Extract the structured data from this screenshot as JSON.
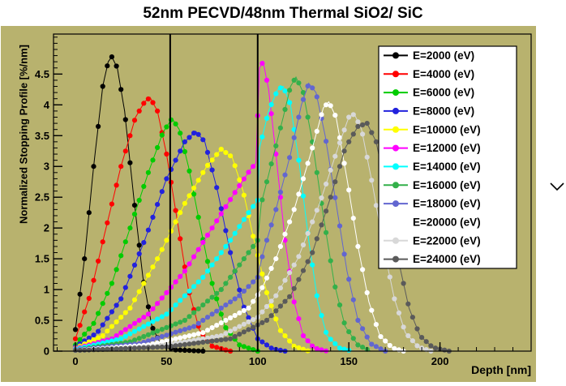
{
  "title": "52nm PECVD/48nm Thermal SiO2/ SiC",
  "colors": {
    "canvas_bg": "#b8b26e",
    "axis": "#000000",
    "legend_bg": "#ffffff"
  },
  "icons": {
    "side_chevron": "chevron-down-icon"
  },
  "chart_data": {
    "type": "line",
    "title": "52nm PECVD/48nm Thermal SiO2/ SiC",
    "xlabel": "Depth [nm]",
    "ylabel": "Normalized Stopping Profile [%/nm]",
    "xlim": [
      -12,
      250
    ],
    "ylim": [
      0,
      5.15
    ],
    "x_ticks": [
      0,
      50,
      100,
      150,
      200
    ],
    "y_ticks": [
      0,
      0.5,
      1,
      1.5,
      2,
      2.5,
      3,
      3.5,
      4,
      4.5
    ],
    "x_minor_step": 10,
    "y_minor_step": 0.1,
    "grid": false,
    "marker": "filled-circle",
    "legend_position": "top-right",
    "interface_lines_x": [
      52,
      100
    ],
    "series": [
      {
        "name": "E=2000 (eV)",
        "color": "#000000",
        "points": [
          [
            0,
            0.35
          ],
          [
            5,
            1.5
          ],
          [
            10,
            3.0
          ],
          [
            15,
            4.3
          ],
          [
            18,
            4.7
          ],
          [
            20,
            4.78
          ],
          [
            23,
            4.6
          ],
          [
            27,
            3.9
          ],
          [
            32,
            2.5
          ],
          [
            37,
            1.2
          ],
          [
            42,
            0.4
          ],
          [
            47,
            0.1
          ],
          [
            55,
            0.02
          ],
          [
            70,
            0
          ]
        ]
      },
      {
        "name": "E=4000 (eV)",
        "color": "#ff0000",
        "points": [
          [
            0,
            0.2
          ],
          [
            8,
            0.9
          ],
          [
            16,
            1.9
          ],
          [
            25,
            3.0
          ],
          [
            33,
            3.8
          ],
          [
            38,
            4.05
          ],
          [
            41,
            4.12
          ],
          [
            45,
            3.9
          ],
          [
            50,
            3.2
          ],
          [
            56,
            2.1
          ],
          [
            62,
            1.0
          ],
          [
            68,
            0.35
          ],
          [
            75,
            0.08
          ],
          [
            85,
            0
          ]
        ]
      },
      {
        "name": "E=6000 (eV)",
        "color": "#00cc00",
        "points": [
          [
            0,
            0.1
          ],
          [
            10,
            0.45
          ],
          [
            20,
            1.1
          ],
          [
            30,
            2.0
          ],
          [
            40,
            2.9
          ],
          [
            48,
            3.55
          ],
          [
            53,
            3.78
          ],
          [
            57,
            3.6
          ],
          [
            62,
            3.0
          ],
          [
            68,
            2.1
          ],
          [
            75,
            1.1
          ],
          [
            82,
            0.4
          ],
          [
            90,
            0.1
          ],
          [
            100,
            0
          ]
        ]
      },
      {
        "name": "E=8000 (eV)",
        "color": "#2222dd",
        "points": [
          [
            0,
            0.07
          ],
          [
            12,
            0.3
          ],
          [
            25,
            0.85
          ],
          [
            38,
            1.8
          ],
          [
            50,
            2.8
          ],
          [
            60,
            3.4
          ],
          [
            66,
            3.57
          ],
          [
            71,
            3.4
          ],
          [
            78,
            2.6
          ],
          [
            85,
            1.6
          ],
          [
            92,
            0.75
          ],
          [
            100,
            0.2
          ],
          [
            108,
            0.04
          ],
          [
            115,
            0
          ]
        ]
      },
      {
        "name": "E=10000 (eV)",
        "color": "#ffff00",
        "points": [
          [
            0,
            0.05
          ],
          [
            15,
            0.25
          ],
          [
            30,
            0.7
          ],
          [
            45,
            1.5
          ],
          [
            60,
            2.4
          ],
          [
            72,
            3.0
          ],
          [
            80,
            3.28
          ],
          [
            86,
            3.15
          ],
          [
            92,
            2.6
          ],
          [
            98,
            1.8
          ],
          [
            105,
            0.95
          ],
          [
            112,
            0.35
          ],
          [
            120,
            0.08
          ],
          [
            128,
            0
          ]
        ]
      },
      {
        "name": "E=12000 (eV)",
        "color": "#ff00ff",
        "points": [
          [
            0,
            0.04
          ],
          [
            20,
            0.2
          ],
          [
            40,
            0.6
          ],
          [
            60,
            1.3
          ],
          [
            75,
            2.0
          ],
          [
            88,
            2.6
          ],
          [
            96,
            2.95
          ],
          [
            99,
            3.05
          ],
          [
            101,
            4.6
          ],
          [
            103,
            4.7
          ],
          [
            106,
            4.25
          ],
          [
            110,
            3.2
          ],
          [
            115,
            1.8
          ],
          [
            120,
            0.8
          ],
          [
            125,
            0.25
          ],
          [
            131,
            0.05
          ],
          [
            138,
            0
          ]
        ]
      },
      {
        "name": "E=14000 (eV)",
        "color": "#00ffff",
        "points": [
          [
            0,
            0.03
          ],
          [
            25,
            0.2
          ],
          [
            50,
            0.6
          ],
          [
            70,
            1.2
          ],
          [
            85,
            1.8
          ],
          [
            95,
            2.25
          ],
          [
            100,
            2.45
          ],
          [
            101,
            3.3
          ],
          [
            106,
            3.9
          ],
          [
            111,
            4.25
          ],
          [
            114,
            4.3
          ],
          [
            118,
            4.0
          ],
          [
            123,
            3.0
          ],
          [
            128,
            1.8
          ],
          [
            133,
            0.8
          ],
          [
            138,
            0.25
          ],
          [
            145,
            0.05
          ],
          [
            152,
            0
          ]
        ]
      },
      {
        "name": "E=16000 (eV)",
        "color": "#33b04a",
        "points": [
          [
            0,
            0.02
          ],
          [
            30,
            0.15
          ],
          [
            60,
            0.5
          ],
          [
            80,
            1.0
          ],
          [
            95,
            1.6
          ],
          [
            100,
            1.8
          ],
          [
            102,
            2.4
          ],
          [
            108,
            3.1
          ],
          [
            114,
            3.8
          ],
          [
            118,
            4.3
          ],
          [
            121,
            4.45
          ],
          [
            125,
            4.2
          ],
          [
            130,
            3.4
          ],
          [
            136,
            2.2
          ],
          [
            142,
            1.1
          ],
          [
            148,
            0.4
          ],
          [
            155,
            0.1
          ],
          [
            162,
            0
          ]
        ]
      },
      {
        "name": "E=18000 (eV)",
        "color": "#6266d0",
        "points": [
          [
            0,
            0.02
          ],
          [
            35,
            0.12
          ],
          [
            65,
            0.4
          ],
          [
            90,
            0.9
          ],
          [
            100,
            1.2
          ],
          [
            103,
            1.6
          ],
          [
            110,
            2.3
          ],
          [
            118,
            3.2
          ],
          [
            124,
            4.0
          ],
          [
            128,
            4.35
          ],
          [
            132,
            4.2
          ],
          [
            137,
            3.5
          ],
          [
            143,
            2.4
          ],
          [
            149,
            1.3
          ],
          [
            155,
            0.5
          ],
          [
            162,
            0.12
          ],
          [
            170,
            0
          ]
        ]
      },
      {
        "name": "E=20000 (eV)",
        "color": "#ffffff",
        "points": [
          [
            0,
            0.01
          ],
          [
            40,
            0.1
          ],
          [
            70,
            0.3
          ],
          [
            95,
            0.7
          ],
          [
            102,
            1.0
          ],
          [
            110,
            1.5
          ],
          [
            120,
            2.3
          ],
          [
            130,
            3.3
          ],
          [
            136,
            3.95
          ],
          [
            139,
            4.05
          ],
          [
            143,
            3.8
          ],
          [
            149,
            2.8
          ],
          [
            155,
            1.7
          ],
          [
            161,
            0.8
          ],
          [
            167,
            0.25
          ],
          [
            174,
            0.05
          ],
          [
            180,
            0
          ]
        ]
      },
      {
        "name": "E=22000 (eV)",
        "color": "#d8d8d8",
        "points": [
          [
            0,
            0.01
          ],
          [
            45,
            0.08
          ],
          [
            80,
            0.25
          ],
          [
            100,
            0.55
          ],
          [
            110,
            0.9
          ],
          [
            122,
            1.5
          ],
          [
            134,
            2.4
          ],
          [
            144,
            3.3
          ],
          [
            150,
            3.8
          ],
          [
            153,
            3.85
          ],
          [
            157,
            3.6
          ],
          [
            163,
            2.7
          ],
          [
            169,
            1.7
          ],
          [
            175,
            0.85
          ],
          [
            181,
            0.3
          ],
          [
            188,
            0.07
          ],
          [
            195,
            0
          ]
        ]
      },
      {
        "name": "E=24000 (eV)",
        "color": "#5a5a5a",
        "points": [
          [
            0,
            0.01
          ],
          [
            50,
            0.07
          ],
          [
            85,
            0.2
          ],
          [
            105,
            0.5
          ],
          [
            118,
            0.9
          ],
          [
            130,
            1.6
          ],
          [
            140,
            2.5
          ],
          [
            148,
            3.3
          ],
          [
            155,
            3.65
          ],
          [
            160,
            3.7
          ],
          [
            165,
            3.4
          ],
          [
            171,
            2.5
          ],
          [
            177,
            1.5
          ],
          [
            183,
            0.7
          ],
          [
            189,
            0.25
          ],
          [
            196,
            0.06
          ],
          [
            205,
            0
          ]
        ]
      }
    ]
  }
}
